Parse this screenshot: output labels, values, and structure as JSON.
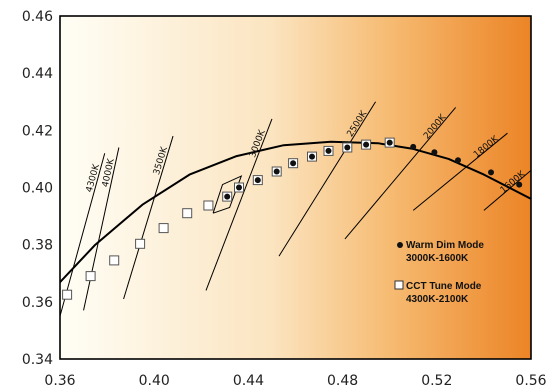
{
  "chart_data": {
    "type": "scatter",
    "title": "",
    "xlabel": "",
    "ylabel": "",
    "xlim": [
      0.36,
      0.56
    ],
    "ylim": [
      0.34,
      0.46
    ],
    "xticks": [
      "0.36",
      "0.40",
      "0.44",
      "0.48",
      "0.52",
      "0.56"
    ],
    "yticks": [
      "0.34",
      "0.36",
      "0.38",
      "0.40",
      "0.42",
      "0.44",
      "0.46"
    ],
    "grid": false,
    "legend_position": "right",
    "background": {
      "type": "horizontal-gradient",
      "from_color": "#fffef6",
      "to_color": "#ec8426"
    },
    "planckian_locus": {
      "x": [
        0.359,
        0.375,
        0.395,
        0.415,
        0.435,
        0.455,
        0.475,
        0.495,
        0.51,
        0.525,
        0.54,
        0.56
      ],
      "y": [
        0.366,
        0.38,
        0.394,
        0.4045,
        0.411,
        0.4148,
        0.416,
        0.4155,
        0.4135,
        0.41,
        0.4045,
        0.396
      ]
    },
    "cct_lines": [
      {
        "label": "4300K",
        "x": [
          0.36,
          0.379
        ],
        "y": [
          0.355,
          0.412
        ]
      },
      {
        "label": "4000K",
        "x": [
          0.37,
          0.385
        ],
        "y": [
          0.357,
          0.414
        ]
      },
      {
        "label": "3500K",
        "x": [
          0.387,
          0.408
        ],
        "y": [
          0.361,
          0.418
        ]
      },
      {
        "label": "3000K",
        "x": [
          0.422,
          0.45
        ],
        "y": [
          0.364,
          0.424
        ]
      },
      {
        "label": "2500K",
        "x": [
          0.453,
          0.494
        ],
        "y": [
          0.376,
          0.43
        ]
      },
      {
        "label": "2000K",
        "x": [
          0.481,
          0.528
        ],
        "y": [
          0.382,
          0.428
        ]
      },
      {
        "label": "1800K",
        "x": [
          0.51,
          0.55
        ],
        "y": [
          0.392,
          0.419
        ]
      },
      {
        "label": "1600K",
        "x": [
          0.54,
          0.56
        ],
        "y": [
          0.392,
          0.406
        ]
      }
    ],
    "quadrangle": {
      "x": [
        0.425,
        0.432,
        0.437,
        0.429,
        0.425
      ],
      "y": [
        0.391,
        0.393,
        0.404,
        0.401,
        0.391
      ]
    },
    "series": [
      {
        "name": "Warm Dim Mode",
        "marker": "filled-circle",
        "color": "#111111",
        "x": [
          0.431,
          0.436,
          0.444,
          0.452,
          0.459,
          0.467,
          0.474,
          0.482,
          0.49,
          0.5,
          0.51,
          0.519,
          0.529,
          0.543,
          0.555
        ],
        "y": [
          0.3968,
          0.4,
          0.4026,
          0.4056,
          0.4085,
          0.4108,
          0.4128,
          0.414,
          0.415,
          0.4157,
          0.4142,
          0.4123,
          0.4095,
          0.4053,
          0.401
        ]
      },
      {
        "name": "CCT Tune Mode",
        "marker": "open-square",
        "color": "#555555",
        "x": [
          0.363,
          0.373,
          0.383,
          0.394,
          0.404,
          0.414,
          0.423,
          0.431,
          0.436,
          0.444,
          0.452,
          0.459,
          0.467,
          0.474,
          0.482,
          0.49,
          0.5
        ],
        "y": [
          0.3625,
          0.369,
          0.3745,
          0.3803,
          0.3858,
          0.391,
          0.3937,
          0.3968,
          0.4,
          0.4026,
          0.4056,
          0.4085,
          0.4108,
          0.4128,
          0.414,
          0.415,
          0.4157
        ]
      }
    ],
    "legend": [
      {
        "marker": "filled-circle",
        "line1": "Warm Dim Mode",
        "line2": "3000K-1600K"
      },
      {
        "marker": "open-square",
        "line1": "CCT Tune Mode",
        "line2": "4300K-2100K"
      }
    ]
  }
}
